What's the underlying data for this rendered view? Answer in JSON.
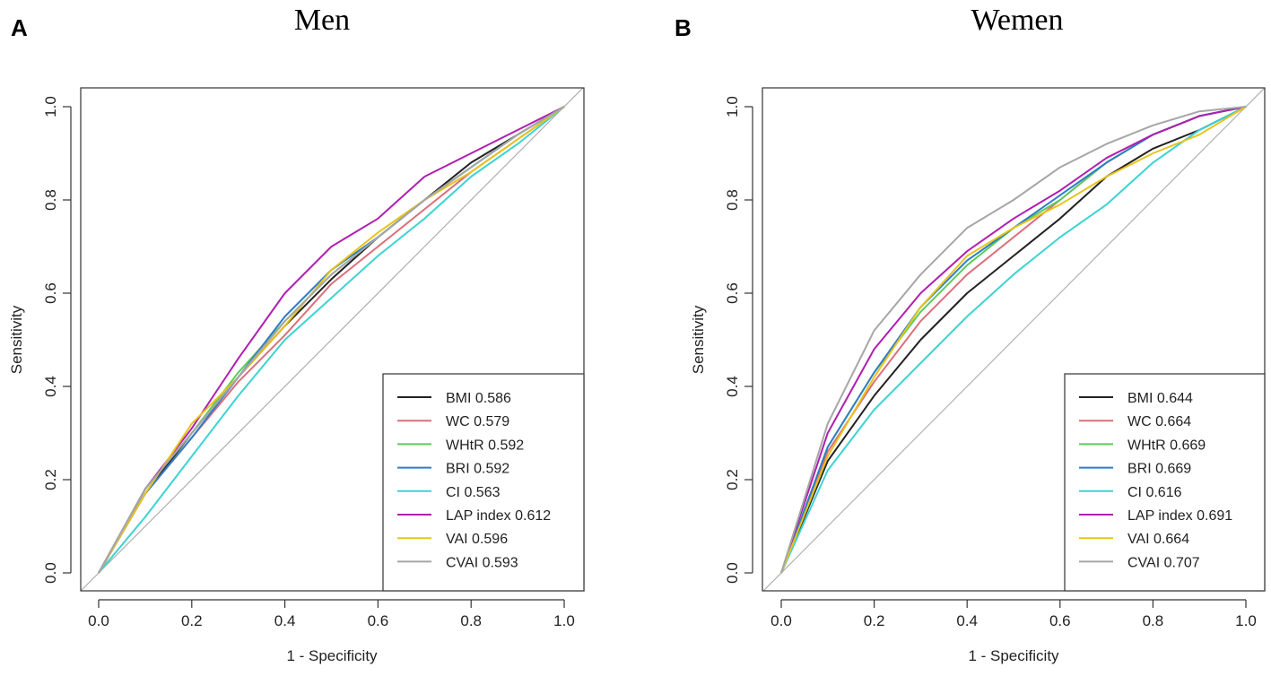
{
  "chart_data": [
    {
      "type": "line",
      "panel_label": "A",
      "title": "Men",
      "xlabel": "1 - Specificity",
      "ylabel": "Sensitivity",
      "xlim": [
        0,
        1
      ],
      "ylim": [
        0,
        1
      ],
      "xticks": [
        "0.0",
        "0.2",
        "0.4",
        "0.6",
        "0.8",
        "1.0"
      ],
      "yticks": [
        "0.0",
        "0.2",
        "0.4",
        "0.6",
        "0.8",
        "1.0"
      ],
      "legend_position": "bottom-right",
      "reference_line": {
        "color": "#b0b0b0"
      },
      "series": [
        {
          "name": "BMI",
          "auc": "0.586",
          "color": "#222222",
          "x": [
            0,
            0.1,
            0.2,
            0.3,
            0.4,
            0.5,
            0.6,
            0.7,
            0.8,
            0.9,
            1
          ],
          "y": [
            0,
            0.17,
            0.3,
            0.42,
            0.53,
            0.63,
            0.72,
            0.8,
            0.88,
            0.94,
            1
          ]
        },
        {
          "name": "WC",
          "auc": "0.579",
          "color": "#d9707c",
          "x": [
            0,
            0.1,
            0.2,
            0.3,
            0.4,
            0.5,
            0.6,
            0.7,
            0.8,
            0.9,
            1
          ],
          "y": [
            0,
            0.17,
            0.29,
            0.41,
            0.51,
            0.62,
            0.7,
            0.78,
            0.86,
            0.93,
            1
          ]
        },
        {
          "name": "WHtR",
          "auc": "0.592",
          "color": "#5ccc5c",
          "x": [
            0,
            0.1,
            0.2,
            0.3,
            0.4,
            0.5,
            0.6,
            0.7,
            0.8,
            0.9,
            1
          ],
          "y": [
            0,
            0.18,
            0.3,
            0.43,
            0.54,
            0.64,
            0.72,
            0.8,
            0.87,
            0.94,
            1
          ]
        },
        {
          "name": "BRI",
          "auc": "0.592",
          "color": "#2e7dc6",
          "x": [
            0,
            0.1,
            0.2,
            0.3,
            0.4,
            0.5,
            0.6,
            0.7,
            0.8,
            0.9,
            1
          ],
          "y": [
            0,
            0.17,
            0.29,
            0.42,
            0.55,
            0.65,
            0.72,
            0.8,
            0.87,
            0.94,
            1
          ]
        },
        {
          "name": "CI",
          "auc": "0.563",
          "color": "#3cd3d3",
          "x": [
            0,
            0.1,
            0.2,
            0.3,
            0.4,
            0.5,
            0.6,
            0.7,
            0.8,
            0.9,
            1
          ],
          "y": [
            0,
            0.12,
            0.25,
            0.38,
            0.5,
            0.59,
            0.68,
            0.76,
            0.85,
            0.92,
            1
          ]
        },
        {
          "name": "LAP index",
          "auc": "0.612",
          "color": "#b01fb0",
          "x": [
            0,
            0.1,
            0.2,
            0.3,
            0.4,
            0.5,
            0.6,
            0.7,
            0.8,
            0.9,
            1
          ],
          "y": [
            0,
            0.18,
            0.31,
            0.46,
            0.6,
            0.7,
            0.76,
            0.85,
            0.9,
            0.95,
            1
          ]
        },
        {
          "name": "VAI",
          "auc": "0.596",
          "color": "#e8c41a",
          "x": [
            0,
            0.1,
            0.2,
            0.3,
            0.4,
            0.5,
            0.6,
            0.7,
            0.8,
            0.9,
            1
          ],
          "y": [
            0,
            0.17,
            0.32,
            0.42,
            0.53,
            0.65,
            0.73,
            0.8,
            0.86,
            0.93,
            1
          ]
        },
        {
          "name": "CVAI",
          "auc": "0.593",
          "color": "#a6a6a6",
          "x": [
            0,
            0.1,
            0.2,
            0.3,
            0.4,
            0.5,
            0.6,
            0.7,
            0.8,
            0.9,
            1
          ],
          "y": [
            0,
            0.18,
            0.3,
            0.42,
            0.54,
            0.64,
            0.72,
            0.8,
            0.87,
            0.94,
            1
          ]
        }
      ]
    },
    {
      "type": "line",
      "panel_label": "B",
      "title": "Wemen",
      "xlabel": "1 - Specificity",
      "ylabel": "Sensitivity",
      "xlim": [
        0,
        1
      ],
      "ylim": [
        0,
        1
      ],
      "xticks": [
        "0.0",
        "0.2",
        "0.4",
        "0.6",
        "0.8",
        "1.0"
      ],
      "yticks": [
        "0.0",
        "0.2",
        "0.4",
        "0.6",
        "0.8",
        "1.0"
      ],
      "legend_position": "bottom-right",
      "reference_line": {
        "color": "#b0b0b0"
      },
      "series": [
        {
          "name": "BMI",
          "auc": "0.644",
          "color": "#222222",
          "x": [
            0,
            0.1,
            0.2,
            0.3,
            0.4,
            0.5,
            0.6,
            0.7,
            0.8,
            0.9,
            1
          ],
          "y": [
            0,
            0.24,
            0.38,
            0.5,
            0.6,
            0.68,
            0.76,
            0.85,
            0.91,
            0.95,
            1
          ]
        },
        {
          "name": "WC",
          "auc": "0.664",
          "color": "#d9707c",
          "x": [
            0,
            0.1,
            0.2,
            0.3,
            0.4,
            0.5,
            0.6,
            0.7,
            0.8,
            0.9,
            1
          ],
          "y": [
            0,
            0.26,
            0.41,
            0.54,
            0.64,
            0.72,
            0.8,
            0.88,
            0.94,
            0.98,
            1
          ]
        },
        {
          "name": "WHtR",
          "auc": "0.669",
          "color": "#5ccc5c",
          "x": [
            0,
            0.1,
            0.2,
            0.3,
            0.4,
            0.5,
            0.6,
            0.7,
            0.8,
            0.9,
            1
          ],
          "y": [
            0,
            0.27,
            0.43,
            0.56,
            0.66,
            0.74,
            0.8,
            0.88,
            0.94,
            0.98,
            1
          ]
        },
        {
          "name": "BRI",
          "auc": "0.669",
          "color": "#2e7dc6",
          "x": [
            0,
            0.1,
            0.2,
            0.3,
            0.4,
            0.5,
            0.6,
            0.7,
            0.8,
            0.9,
            1
          ],
          "y": [
            0,
            0.27,
            0.43,
            0.57,
            0.67,
            0.74,
            0.81,
            0.88,
            0.94,
            0.98,
            1
          ]
        },
        {
          "name": "CI",
          "auc": "0.616",
          "color": "#3cd3d3",
          "x": [
            0,
            0.1,
            0.2,
            0.3,
            0.4,
            0.5,
            0.6,
            0.7,
            0.8,
            0.9,
            1
          ],
          "y": [
            0,
            0.22,
            0.35,
            0.45,
            0.55,
            0.64,
            0.72,
            0.79,
            0.88,
            0.95,
            1
          ]
        },
        {
          "name": "LAP index",
          "auc": "0.691",
          "color": "#b01fb0",
          "x": [
            0,
            0.1,
            0.2,
            0.3,
            0.4,
            0.5,
            0.6,
            0.7,
            0.8,
            0.9,
            1
          ],
          "y": [
            0,
            0.3,
            0.48,
            0.6,
            0.69,
            0.76,
            0.82,
            0.89,
            0.94,
            0.98,
            1
          ]
        },
        {
          "name": "VAI",
          "auc": "0.664",
          "color": "#e8c41a",
          "x": [
            0,
            0.1,
            0.2,
            0.3,
            0.4,
            0.5,
            0.6,
            0.7,
            0.8,
            0.9,
            1
          ],
          "y": [
            0,
            0.25,
            0.42,
            0.57,
            0.68,
            0.74,
            0.79,
            0.85,
            0.9,
            0.94,
            1
          ]
        },
        {
          "name": "CVAI",
          "auc": "0.707",
          "color": "#a6a6a6",
          "x": [
            0,
            0.1,
            0.2,
            0.3,
            0.4,
            0.5,
            0.6,
            0.7,
            0.8,
            0.9,
            1
          ],
          "y": [
            0,
            0.32,
            0.52,
            0.64,
            0.74,
            0.8,
            0.87,
            0.92,
            0.96,
            0.99,
            1
          ]
        }
      ]
    }
  ]
}
